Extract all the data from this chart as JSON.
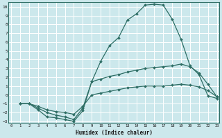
{
  "title": "",
  "xlabel": "Humidex (Indice chaleur)",
  "background_color": "#cce8ec",
  "grid_color": "#ffffff",
  "line_color": "#2e6e65",
  "ylim": [
    -3.2,
    10.5
  ],
  "xlim": [
    -0.3,
    23.3
  ],
  "yticks": [
    -3,
    -2,
    -1,
    0,
    1,
    2,
    3,
    4,
    5,
    6,
    7,
    8,
    9,
    10
  ],
  "xticks": [
    0,
    1,
    2,
    3,
    4,
    5,
    6,
    7,
    8,
    9,
    10,
    11,
    12,
    13,
    14,
    15,
    16,
    17,
    18,
    19,
    20,
    21,
    22,
    23
  ],
  "line1_x": [
    1,
    2,
    3,
    4,
    5,
    6,
    7,
    8,
    9,
    10,
    11,
    12,
    13,
    14,
    15,
    16,
    17,
    18,
    19,
    20,
    21,
    22,
    23
  ],
  "line1_y": [
    -1,
    -1,
    -1.7,
    -2.5,
    -2.6,
    -2.8,
    -3.0,
    -1.8,
    1.5,
    3.8,
    5.6,
    6.5,
    8.5,
    9.2,
    10.2,
    10.3,
    10.2,
    8.6,
    6.3,
    3.3,
    2.3,
    -0.1,
    -0.4
  ],
  "line2_x": [
    1,
    2,
    3,
    4,
    5,
    6,
    7,
    8,
    9,
    10,
    11,
    12,
    13,
    14,
    15,
    16,
    17,
    18,
    19,
    20,
    21,
    22,
    23
  ],
  "line2_y": [
    -1,
    -1,
    -1.5,
    -2.0,
    -2.3,
    -2.5,
    -2.8,
    -1.5,
    1.5,
    1.8,
    2.1,
    2.3,
    2.6,
    2.8,
    3.0,
    3.1,
    3.2,
    3.3,
    3.5,
    3.2,
    2.5,
    1.2,
    -0.2
  ],
  "line3_x": [
    1,
    2,
    3,
    4,
    5,
    6,
    7,
    8,
    9,
    10,
    11,
    12,
    13,
    14,
    15,
    16,
    17,
    18,
    19,
    20,
    21,
    22,
    23
  ],
  "line3_y": [
    -1,
    -1,
    -1.3,
    -1.7,
    -1.9,
    -2.0,
    -2.2,
    -1.3,
    0.0,
    0.2,
    0.4,
    0.6,
    0.8,
    0.9,
    1.0,
    1.0,
    1.0,
    1.1,
    1.2,
    1.1,
    0.9,
    0.5,
    -0.2
  ]
}
